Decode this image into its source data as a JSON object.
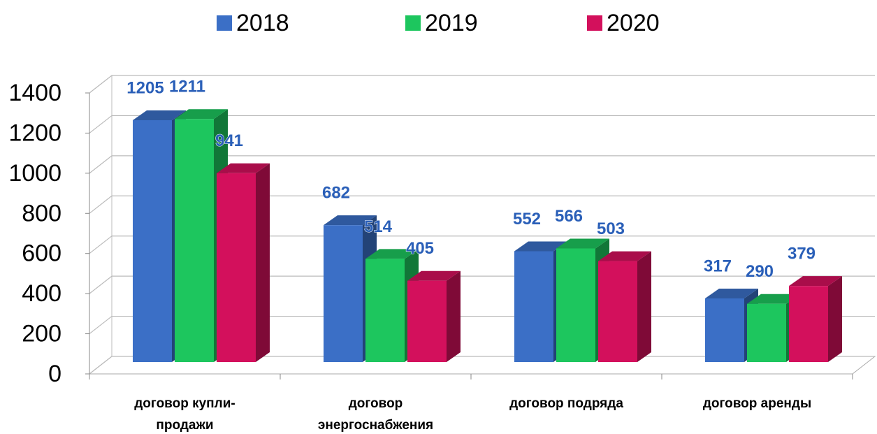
{
  "chart_data": {
    "type": "bar3d",
    "categories": [
      [
        "договор купли-",
        "продажи"
      ],
      [
        "договор",
        "энергоснабжения"
      ],
      [
        "договор подряда"
      ],
      [
        "договор аренды"
      ]
    ],
    "series": [
      {
        "name": "2018",
        "color": "#3b6fc6",
        "values": [
          1205,
          682,
          552,
          317
        ]
      },
      {
        "name": "2019",
        "color": "#1dc65e",
        "values": [
          1211,
          514,
          566,
          290
        ]
      },
      {
        "name": "2020",
        "color": "#d3105c",
        "values": [
          941,
          405,
          503,
          379
        ]
      }
    ],
    "ylim": [
      0,
      1400
    ],
    "yticks": [
      0,
      200,
      400,
      600,
      800,
      1000,
      1200,
      1400
    ],
    "grid": true,
    "legend": "top"
  }
}
